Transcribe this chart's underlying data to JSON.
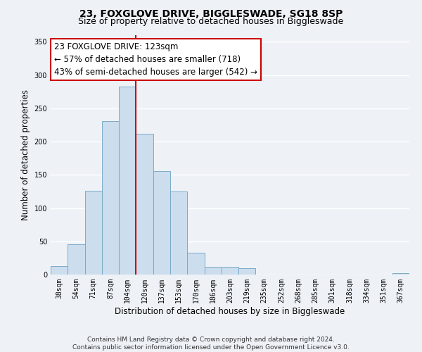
{
  "title": "23, FOXGLOVE DRIVE, BIGGLESWADE, SG18 8SP",
  "subtitle": "Size of property relative to detached houses in Biggleswade",
  "xlabel": "Distribution of detached houses by size in Biggleswade",
  "ylabel": "Number of detached properties",
  "footer_line1": "Contains HM Land Registry data © Crown copyright and database right 2024.",
  "footer_line2": "Contains public sector information licensed under the Open Government Licence v3.0.",
  "annotation_line1": "23 FOXGLOVE DRIVE: 123sqm",
  "annotation_line2": "← 57% of detached houses are smaller (718)",
  "annotation_line3": "43% of semi-detached houses are larger (542) →",
  "bar_labels": [
    "38sqm",
    "54sqm",
    "71sqm",
    "87sqm",
    "104sqm",
    "120sqm",
    "137sqm",
    "153sqm",
    "170sqm",
    "186sqm",
    "203sqm",
    "219sqm",
    "235sqm",
    "252sqm",
    "268sqm",
    "285sqm",
    "301sqm",
    "318sqm",
    "334sqm",
    "351sqm",
    "367sqm"
  ],
  "bar_values": [
    13,
    46,
    126,
    231,
    283,
    212,
    156,
    125,
    33,
    12,
    12,
    10,
    0,
    0,
    0,
    0,
    0,
    0,
    0,
    0,
    2
  ],
  "bar_color": "#ccdded",
  "bar_edge_color": "#7aaac8",
  "vline_color": "#cc0000",
  "ylim": [
    0,
    360
  ],
  "yticks": [
    0,
    50,
    100,
    150,
    200,
    250,
    300,
    350
  ],
  "background_color": "#eef2f7",
  "grid_color": "#ffffff",
  "annotation_box_color": "#ffffff",
  "annotation_box_edge_color": "#cc0000",
  "title_fontsize": 10,
  "subtitle_fontsize": 9,
  "axis_label_fontsize": 8.5,
  "tick_fontsize": 7,
  "annotation_fontsize": 8.5,
  "footer_fontsize": 6.5
}
